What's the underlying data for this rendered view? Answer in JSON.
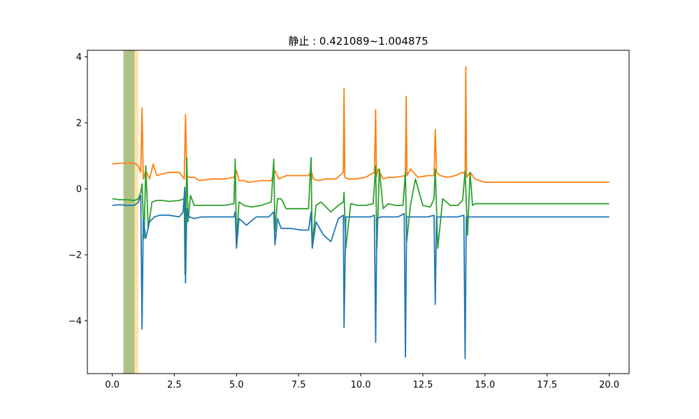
{
  "chart_data": {
    "type": "line",
    "title": "静止 : 0.421089~1.004875",
    "xlabel": "",
    "ylabel": "",
    "xlim": [
      -1.0,
      20.8
    ],
    "ylim": [
      -5.6,
      4.2
    ],
    "xticks": [
      0.0,
      2.5,
      5.0,
      7.5,
      10.0,
      12.5,
      15.0,
      17.5,
      20.0
    ],
    "xtick_labels": [
      "0.0",
      "2.5",
      "5.0",
      "7.5",
      "10.0",
      "12.5",
      "15.0",
      "17.5",
      "20.0"
    ],
    "yticks": [
      4,
      2,
      0,
      -2,
      -4
    ],
    "ytick_labels": [
      "4",
      "2",
      "0",
      "−2",
      "−4"
    ],
    "grid": false,
    "highlight_spans": [
      {
        "x0": 0.45,
        "x1": 0.9,
        "color": "#6b8e23",
        "opacity": 0.55
      },
      {
        "x0": 0.9,
        "x1": 1.05,
        "color": "#ffd070",
        "opacity": 0.6
      }
    ],
    "series": [
      {
        "color": "#ff7f0e",
        "x": [
          0.0,
          0.3,
          0.6,
          0.9,
          1.05,
          1.15,
          1.2,
          1.25,
          1.35,
          1.5,
          1.65,
          1.8,
          2.0,
          2.3,
          2.7,
          2.9,
          2.95,
          3.0,
          3.1,
          3.3,
          3.5,
          4.0,
          4.5,
          4.9,
          5.0,
          5.1,
          5.3,
          5.5,
          6.0,
          6.4,
          6.55,
          6.7,
          7.0,
          7.5,
          7.9,
          8.0,
          8.1,
          8.3,
          8.6,
          9.0,
          9.3,
          9.33,
          9.36,
          9.5,
          9.8,
          10.2,
          10.55,
          10.6,
          10.63,
          10.7,
          10.9,
          11.1,
          11.4,
          11.8,
          11.83,
          11.86,
          12.0,
          12.3,
          12.7,
          12.95,
          13.0,
          13.05,
          13.2,
          13.5,
          13.8,
          14.1,
          14.2,
          14.23,
          14.26,
          14.4,
          14.6,
          14.8,
          15.0,
          16.0,
          17.0,
          18.0,
          19.0,
          20.0
        ],
        "y": [
          0.75,
          0.78,
          0.78,
          0.78,
          0.7,
          0.5,
          2.45,
          0.3,
          0.55,
          0.3,
          0.75,
          0.4,
          0.45,
          0.5,
          0.5,
          0.3,
          2.25,
          0.4,
          0.35,
          0.35,
          0.25,
          0.3,
          0.3,
          0.35,
          0.55,
          0.25,
          0.25,
          0.2,
          0.25,
          0.25,
          0.55,
          0.3,
          0.4,
          0.4,
          0.4,
          0.55,
          0.3,
          0.25,
          0.3,
          0.3,
          0.5,
          3.05,
          0.35,
          0.3,
          0.3,
          0.35,
          0.5,
          2.4,
          0.35,
          0.6,
          0.3,
          0.35,
          0.35,
          0.4,
          2.8,
          0.4,
          0.6,
          0.35,
          0.4,
          0.4,
          1.8,
          0.5,
          0.4,
          0.35,
          0.4,
          0.5,
          0.45,
          3.7,
          0.35,
          0.5,
          0.3,
          0.25,
          0.2,
          0.2,
          0.2,
          0.2,
          0.2,
          0.2
        ]
      },
      {
        "color": "#2ca02c",
        "x": [
          0.0,
          0.3,
          0.6,
          0.9,
          1.05,
          1.15,
          1.2,
          1.28,
          1.35,
          1.45,
          1.6,
          1.8,
          2.0,
          2.3,
          2.7,
          2.9,
          2.93,
          3.0,
          3.05,
          3.15,
          3.3,
          3.6,
          4.0,
          4.5,
          4.9,
          4.95,
          5.0,
          5.1,
          5.3,
          5.6,
          6.0,
          6.4,
          6.5,
          6.55,
          6.65,
          6.8,
          7.0,
          7.5,
          7.9,
          8.0,
          8.05,
          8.2,
          8.4,
          8.8,
          9.1,
          9.3,
          9.33,
          9.4,
          9.6,
          9.9,
          10.2,
          10.5,
          10.6,
          10.65,
          10.75,
          10.9,
          11.1,
          11.4,
          11.7,
          11.8,
          11.85,
          12.0,
          12.2,
          12.5,
          12.8,
          12.95,
          13.0,
          13.1,
          13.3,
          13.6,
          13.9,
          14.1,
          14.2,
          14.3,
          14.4,
          14.5,
          14.6,
          15.0,
          16.0,
          17.0,
          18.0,
          19.0,
          20.0
        ],
        "y": [
          -0.3,
          -0.33,
          -0.33,
          -0.35,
          -0.3,
          -0.1,
          0.15,
          -1.5,
          0.7,
          -1.2,
          -0.4,
          -0.35,
          -0.35,
          -0.38,
          -0.35,
          -0.3,
          -2.6,
          0.95,
          -1.0,
          -0.2,
          -0.5,
          -0.5,
          -0.5,
          -0.5,
          -0.45,
          0.9,
          -1.6,
          -0.4,
          -0.5,
          -0.55,
          -0.5,
          -0.4,
          0.9,
          -1.3,
          -0.3,
          -0.3,
          -0.6,
          -0.6,
          -0.6,
          0.95,
          -1.7,
          -0.5,
          -0.4,
          -0.7,
          -0.5,
          -0.4,
          -0.1,
          -1.8,
          -0.45,
          -0.5,
          -0.5,
          -0.45,
          0.7,
          -1.8,
          0.6,
          -0.6,
          -0.45,
          -0.5,
          -0.5,
          0.5,
          -1.6,
          -0.5,
          0.3,
          -0.5,
          -0.55,
          -0.3,
          0.6,
          -1.8,
          -0.3,
          -0.5,
          -0.5,
          -0.35,
          0.55,
          -1.4,
          0.5,
          -0.5,
          -0.45,
          -0.45,
          -0.45,
          -0.45,
          -0.45,
          -0.45,
          -0.45
        ]
      },
      {
        "color": "#1f77b4",
        "x": [
          0.0,
          0.3,
          0.6,
          0.9,
          1.05,
          1.15,
          1.2,
          1.25,
          1.35,
          1.5,
          1.7,
          1.9,
          2.3,
          2.7,
          2.85,
          2.92,
          2.95,
          3.0,
          3.1,
          3.3,
          3.6,
          4.0,
          4.5,
          4.9,
          4.95,
          5.0,
          5.1,
          5.4,
          5.8,
          6.3,
          6.5,
          6.55,
          6.65,
          6.8,
          7.2,
          7.6,
          7.9,
          8.0,
          8.05,
          8.2,
          8.5,
          8.8,
          9.1,
          9.3,
          9.33,
          9.4,
          9.6,
          10.0,
          10.4,
          10.55,
          10.6,
          10.65,
          10.8,
          11.1,
          11.5,
          11.75,
          11.8,
          11.85,
          12.0,
          12.3,
          12.7,
          12.95,
          13.0,
          13.05,
          13.2,
          13.5,
          13.9,
          14.15,
          14.2,
          14.25,
          14.4,
          14.6,
          15.0,
          15.5,
          16.0,
          17.0,
          18.0,
          19.0,
          20.0
        ],
        "y": [
          -0.5,
          -0.48,
          -0.5,
          -0.5,
          -0.4,
          -0.2,
          -4.25,
          -0.9,
          -1.5,
          -1.0,
          -0.85,
          -0.8,
          -0.8,
          -0.85,
          -0.7,
          0.05,
          -2.85,
          -0.6,
          -0.85,
          -0.9,
          -0.85,
          -0.85,
          -0.85,
          -0.85,
          -0.7,
          -1.8,
          -0.9,
          -1.1,
          -0.85,
          -0.85,
          -0.7,
          -1.7,
          -0.9,
          -1.2,
          -1.2,
          -1.25,
          -1.25,
          -0.7,
          -1.8,
          -1.0,
          -1.4,
          -1.6,
          -0.9,
          -0.8,
          -4.2,
          -0.85,
          -0.85,
          -0.85,
          -0.85,
          -0.8,
          -4.65,
          -0.9,
          -0.85,
          -0.85,
          -0.85,
          -0.75,
          -5.1,
          -0.85,
          -0.85,
          -0.85,
          -0.85,
          -0.8,
          -3.5,
          -0.85,
          -0.85,
          -0.85,
          -0.85,
          -0.8,
          -5.15,
          -0.85,
          -0.85,
          -0.85,
          -0.85,
          -0.85,
          -0.85,
          -0.85,
          -0.85,
          -0.85,
          -0.85
        ]
      }
    ]
  }
}
